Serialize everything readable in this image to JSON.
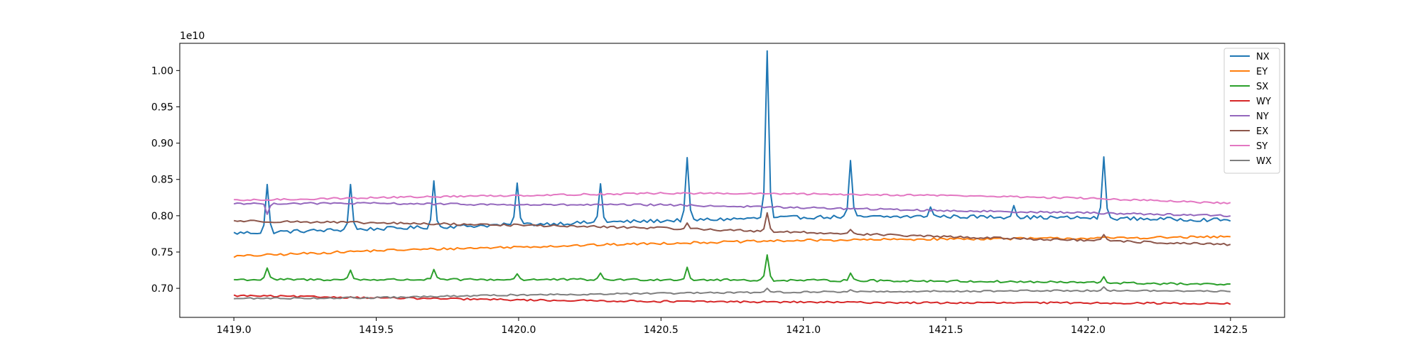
{
  "chart_data": {
    "type": "line",
    "title": "",
    "xlabel": "",
    "ylabel": "",
    "offset_label": "1e10",
    "xlim": [
      1418.81,
      1422.69
    ],
    "ylim": [
      6600000000.0,
      10375000000.0
    ],
    "x_ticks": [
      1419.0,
      1419.5,
      1420.0,
      1420.5,
      1421.0,
      1421.5,
      1422.0,
      1422.5
    ],
    "x_tick_labels": [
      "1419.0",
      "1419.5",
      "1420.0",
      "1420.5",
      "1421.0",
      "1421.5",
      "1422.0",
      "1422.5"
    ],
    "y_ticks": [
      7000000000.0,
      7500000000.0,
      8000000000.0,
      8500000000.0,
      9000000000.0,
      9500000000.0,
      10000000000.0
    ],
    "y_tick_labels": [
      "0.70",
      "0.75",
      "0.80",
      "0.85",
      "0.90",
      "0.95",
      "1.00"
    ],
    "grid": false,
    "legend_position": "top-right",
    "x_range": [
      1419.0,
      1422.5
    ],
    "series": [
      {
        "name": "NX",
        "color": "#1f77b4",
        "trend": [
          [
            1419.0,
            7760000000.0
          ],
          [
            1419.5,
            7820000000.0
          ],
          [
            1420.0,
            7880000000.0
          ],
          [
            1420.5,
            7930000000.0
          ],
          [
            1421.0,
            7980000000.0
          ],
          [
            1421.5,
            7990000000.0
          ],
          [
            1422.0,
            7970000000.0
          ],
          [
            1422.5,
            7940000000.0
          ]
        ],
        "noise": 25000000.0,
        "spikes": [
          [
            1419.12,
            8430000000.0
          ],
          [
            1419.41,
            8430000000.0
          ],
          [
            1419.7,
            8480000000.0
          ],
          [
            1420.0,
            8450000000.0
          ],
          [
            1420.29,
            8440000000.0
          ],
          [
            1420.59,
            8800000000.0
          ],
          [
            1420.87,
            10270000000.0
          ],
          [
            1421.17,
            8760000000.0
          ],
          [
            1421.45,
            8120000000.0
          ],
          [
            1421.74,
            8140000000.0
          ],
          [
            1422.05,
            8810000000.0
          ]
        ]
      },
      {
        "name": "EY",
        "color": "#ff7f0e",
        "trend": [
          [
            1419.0,
            7440000000.0
          ],
          [
            1419.5,
            7520000000.0
          ],
          [
            1420.0,
            7570000000.0
          ],
          [
            1420.5,
            7620000000.0
          ],
          [
            1421.0,
            7660000000.0
          ],
          [
            1421.5,
            7680000000.0
          ],
          [
            1422.0,
            7690000000.0
          ],
          [
            1422.5,
            7710000000.0
          ]
        ],
        "noise": 16000000.0,
        "spikes": []
      },
      {
        "name": "SX",
        "color": "#2ca02c",
        "trend": [
          [
            1419.0,
            7120000000.0
          ],
          [
            1419.5,
            7120000000.0
          ],
          [
            1420.0,
            7120000000.0
          ],
          [
            1420.5,
            7120000000.0
          ],
          [
            1421.0,
            7110000000.0
          ],
          [
            1421.5,
            7100000000.0
          ],
          [
            1422.0,
            7080000000.0
          ],
          [
            1422.5,
            7050000000.0
          ]
        ],
        "noise": 15000000.0,
        "spikes": [
          [
            1419.12,
            7280000000.0
          ],
          [
            1419.41,
            7250000000.0
          ],
          [
            1419.7,
            7260000000.0
          ],
          [
            1420.0,
            7200000000.0
          ],
          [
            1420.29,
            7210000000.0
          ],
          [
            1420.59,
            7290000000.0
          ],
          [
            1420.87,
            7460000000.0
          ],
          [
            1421.17,
            7210000000.0
          ],
          [
            1422.05,
            7160000000.0
          ]
        ]
      },
      {
        "name": "WY",
        "color": "#d62728",
        "trend": [
          [
            1419.0,
            6900000000.0
          ],
          [
            1419.5,
            6870000000.0
          ],
          [
            1420.0,
            6840000000.0
          ],
          [
            1420.5,
            6820000000.0
          ],
          [
            1421.0,
            6810000000.0
          ],
          [
            1421.5,
            6800000000.0
          ],
          [
            1422.0,
            6800000000.0
          ],
          [
            1422.5,
            6790000000.0
          ]
        ],
        "noise": 12000000.0,
        "spikes": []
      },
      {
        "name": "NY",
        "color": "#9467bd",
        "trend": [
          [
            1419.0,
            8170000000.0
          ],
          [
            1419.5,
            8170000000.0
          ],
          [
            1420.0,
            8150000000.0
          ],
          [
            1420.5,
            8150000000.0
          ],
          [
            1421.0,
            8110000000.0
          ],
          [
            1421.5,
            8070000000.0
          ],
          [
            1422.0,
            8040000000.0
          ],
          [
            1422.5,
            8000000000.0
          ]
        ],
        "noise": 13000000.0,
        "spikes": [
          [
            1419.12,
            8020000000.0
          ]
        ]
      },
      {
        "name": "EX",
        "color": "#8c564b",
        "trend": [
          [
            1419.0,
            7930000000.0
          ],
          [
            1419.5,
            7900000000.0
          ],
          [
            1420.0,
            7870000000.0
          ],
          [
            1420.5,
            7830000000.0
          ],
          [
            1421.0,
            7770000000.0
          ],
          [
            1421.5,
            7710000000.0
          ],
          [
            1422.0,
            7660000000.0
          ],
          [
            1422.5,
            7600000000.0
          ]
        ],
        "noise": 15000000.0,
        "spikes": [
          [
            1420.59,
            7900000000.0
          ],
          [
            1420.87,
            8040000000.0
          ],
          [
            1421.17,
            7810000000.0
          ],
          [
            1422.05,
            7740000000.0
          ]
        ]
      },
      {
        "name": "SY",
        "color": "#e377c2",
        "trend": [
          [
            1419.0,
            8210000000.0
          ],
          [
            1419.5,
            8250000000.0
          ],
          [
            1420.0,
            8280000000.0
          ],
          [
            1420.5,
            8310000000.0
          ],
          [
            1421.0,
            8300000000.0
          ],
          [
            1421.5,
            8280000000.0
          ],
          [
            1422.0,
            8240000000.0
          ],
          [
            1422.5,
            8170000000.0
          ]
        ],
        "noise": 12000000.0,
        "spikes": []
      },
      {
        "name": "WX",
        "color": "#7f7f7f",
        "trend": [
          [
            1419.0,
            6860000000.0
          ],
          [
            1419.5,
            6870000000.0
          ],
          [
            1420.0,
            6910000000.0
          ],
          [
            1420.5,
            6930000000.0
          ],
          [
            1421.0,
            6950000000.0
          ],
          [
            1421.5,
            6960000000.0
          ],
          [
            1422.0,
            6970000000.0
          ],
          [
            1422.5,
            6960000000.0
          ]
        ],
        "noise": 11000000.0,
        "spikes": [
          [
            1420.87,
            7000000000.0
          ],
          [
            1421.17,
            6980000000.0
          ],
          [
            1422.05,
            7020000000.0
          ]
        ]
      }
    ]
  }
}
